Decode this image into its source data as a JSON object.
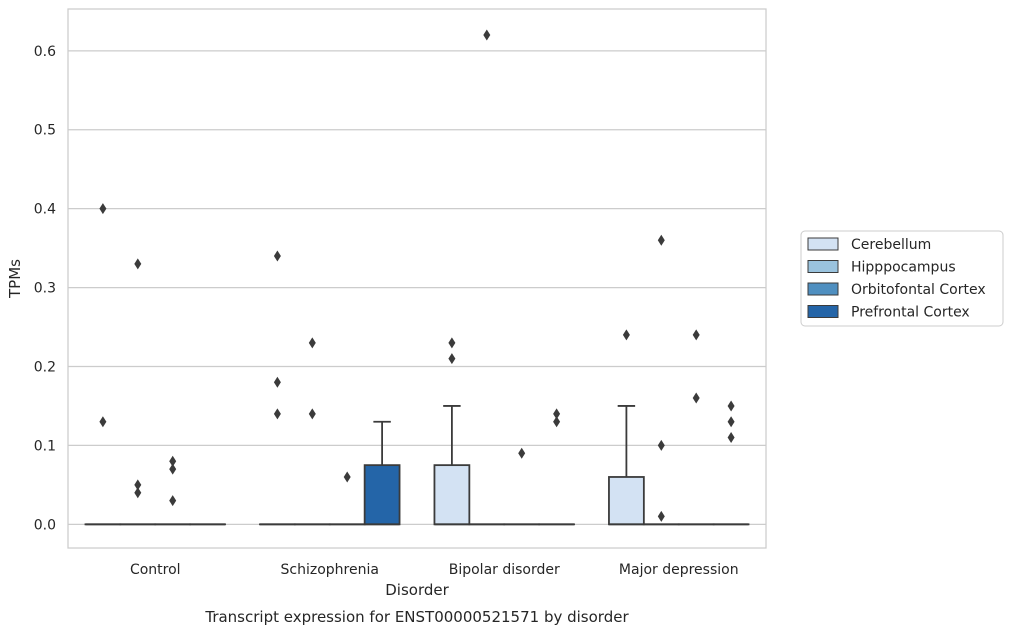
{
  "chart_data": {
    "type": "box",
    "categories": [
      "Control",
      "Schizophrenia",
      "Bipolar disorder",
      "Major depression"
    ],
    "xlabel": "Disorder",
    "ylabel": "TPMs",
    "caption": "Transcript expression for ENST00000521571 by disorder",
    "ylim": [
      -0.03,
      0.653
    ],
    "yticks": [
      0.0,
      0.1,
      0.2,
      0.3,
      0.4,
      0.5,
      0.6
    ],
    "ytick_labels": [
      "0.0",
      "0.1",
      "0.2",
      "0.3",
      "0.4",
      "0.5",
      "0.6"
    ],
    "grid": "horizontal",
    "legend_position": "right",
    "series": [
      {
        "name": "Cerebellum",
        "color": "#d3e2f3",
        "boxes": [
          {
            "q1": 0,
            "median": 0,
            "q3": 0,
            "whisker_low": 0,
            "whisker_high": 0,
            "outliers": [
              0.4,
              0.13
            ]
          },
          {
            "q1": 0,
            "median": 0,
            "q3": 0,
            "whisker_low": 0,
            "whisker_high": 0,
            "outliers": [
              0.34,
              0.18,
              0.14
            ]
          },
          {
            "q1": 0,
            "median": 0,
            "q3": 0.075,
            "whisker_low": 0,
            "whisker_high": 0.15,
            "outliers": [
              0.23,
              0.21
            ]
          },
          {
            "q1": 0,
            "median": 0,
            "q3": 0.06,
            "whisker_low": 0,
            "whisker_high": 0.15,
            "outliers": [
              0.24
            ]
          }
        ]
      },
      {
        "name": "Hipppocampus",
        "color": "#9ac3de",
        "boxes": [
          {
            "q1": 0,
            "median": 0,
            "q3": 0,
            "whisker_low": 0,
            "whisker_high": 0,
            "outliers": [
              0.33,
              0.05,
              0.04
            ]
          },
          {
            "q1": 0,
            "median": 0,
            "q3": 0,
            "whisker_low": 0,
            "whisker_high": 0,
            "outliers": [
              0.23,
              0.14
            ]
          },
          {
            "q1": 0,
            "median": 0,
            "q3": 0,
            "whisker_low": 0,
            "whisker_high": 0,
            "outliers": [
              0.62
            ]
          },
          {
            "q1": 0,
            "median": 0,
            "q3": 0,
            "whisker_low": 0,
            "whisker_high": 0,
            "outliers": [
              0.36,
              0.1,
              0.01
            ]
          }
        ]
      },
      {
        "name": "Orbitofontal Cortex",
        "color": "#4f8fc0",
        "boxes": [
          {
            "q1": 0,
            "median": 0,
            "q3": 0,
            "whisker_low": 0,
            "whisker_high": 0,
            "outliers": [
              0.08,
              0.07,
              0.03
            ]
          },
          {
            "q1": 0,
            "median": 0,
            "q3": 0,
            "whisker_low": 0,
            "whisker_high": 0,
            "outliers": [
              0.06
            ]
          },
          {
            "q1": 0,
            "median": 0,
            "q3": 0,
            "whisker_low": 0,
            "whisker_high": 0,
            "outliers": [
              0.09
            ]
          },
          {
            "q1": 0,
            "median": 0,
            "q3": 0,
            "whisker_low": 0,
            "whisker_high": 0,
            "outliers": [
              0.24,
              0.16
            ]
          }
        ]
      },
      {
        "name": "Prefrontal Cortex",
        "color": "#2465a8",
        "boxes": [
          {
            "q1": 0,
            "median": 0,
            "q3": 0,
            "whisker_low": 0,
            "whisker_high": 0,
            "outliers": []
          },
          {
            "q1": 0,
            "median": 0,
            "q3": 0.075,
            "whisker_low": 0,
            "whisker_high": 0.13,
            "outliers": []
          },
          {
            "q1": 0,
            "median": 0,
            "q3": 0,
            "whisker_low": 0,
            "whisker_high": 0,
            "outliers": [
              0.14,
              0.13
            ]
          },
          {
            "q1": 0,
            "median": 0,
            "q3": 0,
            "whisker_low": 0,
            "whisker_high": 0,
            "outliers": [
              0.15,
              0.13,
              0.11
            ]
          }
        ]
      }
    ]
  }
}
